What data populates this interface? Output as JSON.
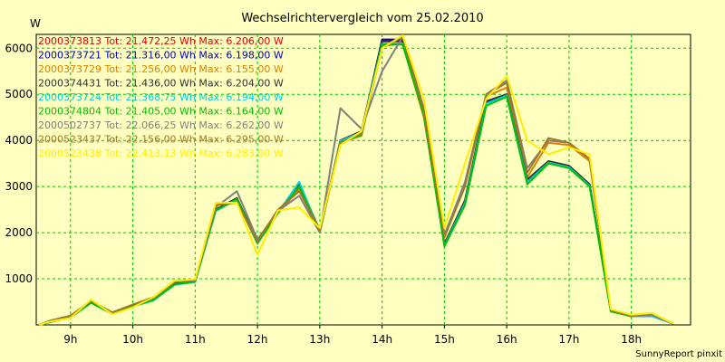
{
  "chart_data": {
    "type": "line",
    "title": "Wechselrichtervergleich vom 25.02.2010",
    "ylabel": "W",
    "xlabel": "",
    "footer": "SunnyReport pinxit",
    "ylim": [
      0,
      6300
    ],
    "xlim": [
      8.45,
      18.95
    ],
    "yticks": [
      1000,
      2000,
      3000,
      4000,
      5000,
      6000
    ],
    "ytick_labels": [
      "1000",
      "2000",
      "3000",
      "4000",
      "5000",
      "6000"
    ],
    "xticks": [
      9,
      10,
      11,
      12,
      13,
      14,
      15,
      16,
      17,
      18
    ],
    "xtick_labels": [
      "9h",
      "10h",
      "11h",
      "12h",
      "13h",
      "14h",
      "15h",
      "16h",
      "17h",
      "18h"
    ],
    "grid": true,
    "legend_position": "top-left",
    "x": [
      8.5,
      8.67,
      9.0,
      9.33,
      9.67,
      10.0,
      10.33,
      10.67,
      11.0,
      11.33,
      11.67,
      12.0,
      12.33,
      12.67,
      13.0,
      13.33,
      13.67,
      14.0,
      14.33,
      14.67,
      15.0,
      15.33,
      15.67,
      16.0,
      16.33,
      16.67,
      17.0,
      17.33,
      17.67,
      18.0,
      18.33,
      18.67
    ],
    "series": [
      {
        "name": "2000373813",
        "label": "2000373813 Tot: 21.472,25 Wh Max: 6.206,00 W",
        "color": "#e00000",
        "values": [
          0,
          80,
          180,
          500,
          260,
          420,
          560,
          900,
          950,
          2500,
          2750,
          1800,
          2450,
          3050,
          2050,
          4000,
          4200,
          6150,
          6150,
          4600,
          1750,
          2700,
          4850,
          5000,
          3150,
          3550,
          3450,
          3050,
          300,
          200,
          200,
          30
        ]
      },
      {
        "name": "2000373721",
        "label": "2000373721 Tot: 21.316,00 Wh Max: 6.198,00 W",
        "color": "#0000c0",
        "values": [
          0,
          60,
          160,
          480,
          250,
          400,
          540,
          880,
          940,
          2480,
          2720,
          1780,
          2440,
          3040,
          2040,
          3980,
          4180,
          6190,
          6190,
          4580,
          1740,
          2680,
          4830,
          4990,
          3130,
          3540,
          3440,
          3040,
          300,
          190,
          190,
          30
        ]
      },
      {
        "name": "2000373729",
        "label": "2000373729 Tot: 21.256,00 Wh Max: 6.155,00 W",
        "color": "#e08000",
        "values": [
          0,
          70,
          170,
          490,
          250,
          410,
          550,
          890,
          940,
          2490,
          2700,
          1760,
          2420,
          2950,
          2000,
          3950,
          4100,
          6050,
          6100,
          4500,
          1780,
          2650,
          4950,
          5150,
          3200,
          3950,
          3900,
          3550,
          300,
          180,
          250,
          30
        ]
      },
      {
        "name": "2000374431",
        "label": "2000374431 Tot: 21.436,00 Wh Max: 6.204,00 W",
        "color": "#303030",
        "values": [
          0,
          80,
          180,
          500,
          260,
          420,
          560,
          900,
          950,
          2500,
          2750,
          1800,
          2450,
          3050,
          2050,
          4000,
          4200,
          6150,
          6150,
          4600,
          1750,
          2700,
          4850,
          5000,
          3150,
          3550,
          3450,
          3050,
          300,
          200,
          200,
          30
        ]
      },
      {
        "name": "2000373724",
        "label": "2000373724 Tot: 21.368,75 Wh Max: 6.194,00 W",
        "color": "#00d0e0",
        "values": [
          0,
          60,
          160,
          480,
          240,
          400,
          530,
          870,
          930,
          2470,
          2720,
          1770,
          2430,
          3100,
          2020,
          3990,
          4180,
          6100,
          6100,
          4560,
          1720,
          2650,
          4800,
          4980,
          3100,
          3520,
          3420,
          3020,
          290,
          190,
          190,
          30
        ]
      },
      {
        "name": "2000374804",
        "label": "2000374804 Tot: 21.405,00 Wh Max: 6.164,00 W",
        "color": "#00c000",
        "values": [
          0,
          60,
          160,
          480,
          240,
          400,
          540,
          880,
          940,
          2480,
          2730,
          1780,
          2440,
          3000,
          2030,
          3960,
          4120,
          6080,
          6080,
          4560,
          1700,
          2600,
          4750,
          4950,
          3050,
          3500,
          3400,
          3000,
          290,
          190,
          250,
          30
        ]
      },
      {
        "name": "2000502737",
        "label": "2000502737 Tot: 22.066,25 Wh Max: 6.262,00 W",
        "color": "#808080",
        "values": [
          0,
          90,
          200,
          520,
          270,
          440,
          580,
          930,
          970,
          2550,
          2900,
          1850,
          2470,
          2800,
          2000,
          4700,
          4250,
          5500,
          6250,
          4700,
          1950,
          3100,
          5000,
          5300,
          3400,
          4000,
          3950,
          3600,
          320,
          200,
          220,
          30
        ]
      },
      {
        "name": "2000523437",
        "label": "2000523437 Tot: 22.156,00 Wh Max: 6.295,00 W",
        "color": "#a07828",
        "values": [
          0,
          90,
          200,
          520,
          270,
          440,
          600,
          950,
          980,
          2600,
          2650,
          1820,
          2500,
          2900,
          2050,
          3950,
          4150,
          6000,
          6250,
          4650,
          1900,
          3000,
          5000,
          5250,
          3300,
          4050,
          3950,
          3600,
          320,
          200,
          250,
          30
        ]
      },
      {
        "name": "2000523438",
        "label": "2000523438 Tot: 22.413,13 Wh Max: 6.283,00 W",
        "color": "#ffee00",
        "values": [
          0,
          70,
          150,
          550,
          230,
          380,
          600,
          960,
          990,
          2650,
          2650,
          1520,
          2480,
          2550,
          2100,
          3900,
          4200,
          6000,
          6280,
          4900,
          2100,
          3500,
          4900,
          5400,
          4000,
          3700,
          3850,
          3700,
          340,
          220,
          260,
          30
        ]
      }
    ]
  }
}
